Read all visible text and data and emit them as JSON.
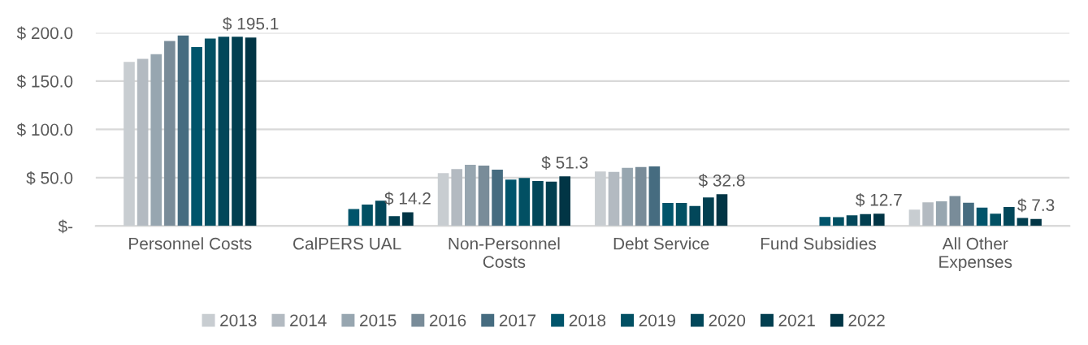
{
  "chart_data": {
    "type": "bar",
    "categories": [
      "Personnel Costs",
      "CalPERS UAL",
      "Non-Personnel\nCosts",
      "Debt Service",
      "Fund Subsidies",
      "All Other\nExpenses"
    ],
    "series": [
      {
        "name": "2013",
        "color": "#c8cdd1",
        "values": [
          169.9,
          null,
          54.8,
          56.5,
          null,
          17.0
        ]
      },
      {
        "name": "2014",
        "color": "#b3bac1",
        "values": [
          173.0,
          null,
          59.0,
          55.9,
          null,
          24.4
        ]
      },
      {
        "name": "2015",
        "color": "#97a6b0",
        "values": [
          177.9,
          null,
          63.3,
          60.1,
          null,
          25.5
        ]
      },
      {
        "name": "2016",
        "color": "#798c99",
        "values": [
          191.5,
          null,
          62.4,
          61.0,
          null,
          30.9
        ]
      },
      {
        "name": "2017",
        "color": "#466c80",
        "values": [
          197.2,
          null,
          58.2,
          61.6,
          null,
          24.1
        ]
      },
      {
        "name": "2018",
        "color": "#00546b",
        "values": [
          185.2,
          17.6,
          47.9,
          23.8,
          9.4,
          19.0
        ]
      },
      {
        "name": "2019",
        "color": "#025063",
        "values": [
          194.0,
          22.1,
          49.6,
          23.8,
          9.1,
          12.8
        ]
      },
      {
        "name": "2020",
        "color": "#02475a",
        "values": [
          196.0,
          26.1,
          46.5,
          20.7,
          11.1,
          19.6
        ]
      },
      {
        "name": "2021",
        "color": "#023f50",
        "values": [
          196.0,
          10.2,
          46.0,
          29.5,
          12.2,
          8.2
        ]
      },
      {
        "name": "2022",
        "color": "#013545",
        "values": [
          195.1,
          14.2,
          51.3,
          32.8,
          12.7,
          7.3
        ],
        "value_labels": [
          "$ 195.1",
          "$ 14.2",
          "$ 51.3",
          "$ 32.8",
          "$ 12.7",
          "$ 7.3"
        ]
      }
    ],
    "ylim": [
      0,
      200
    ],
    "yticks": [
      {
        "value": 0,
        "label": "$-"
      },
      {
        "value": 50,
        "label": "$ 50.0"
      },
      {
        "value": 100,
        "label": "$ 100.0"
      },
      {
        "value": 150,
        "label": "$ 150.0"
      },
      {
        "value": 200,
        "label": "$ 200.0"
      }
    ],
    "grid": "y",
    "legend": "bottom"
  }
}
